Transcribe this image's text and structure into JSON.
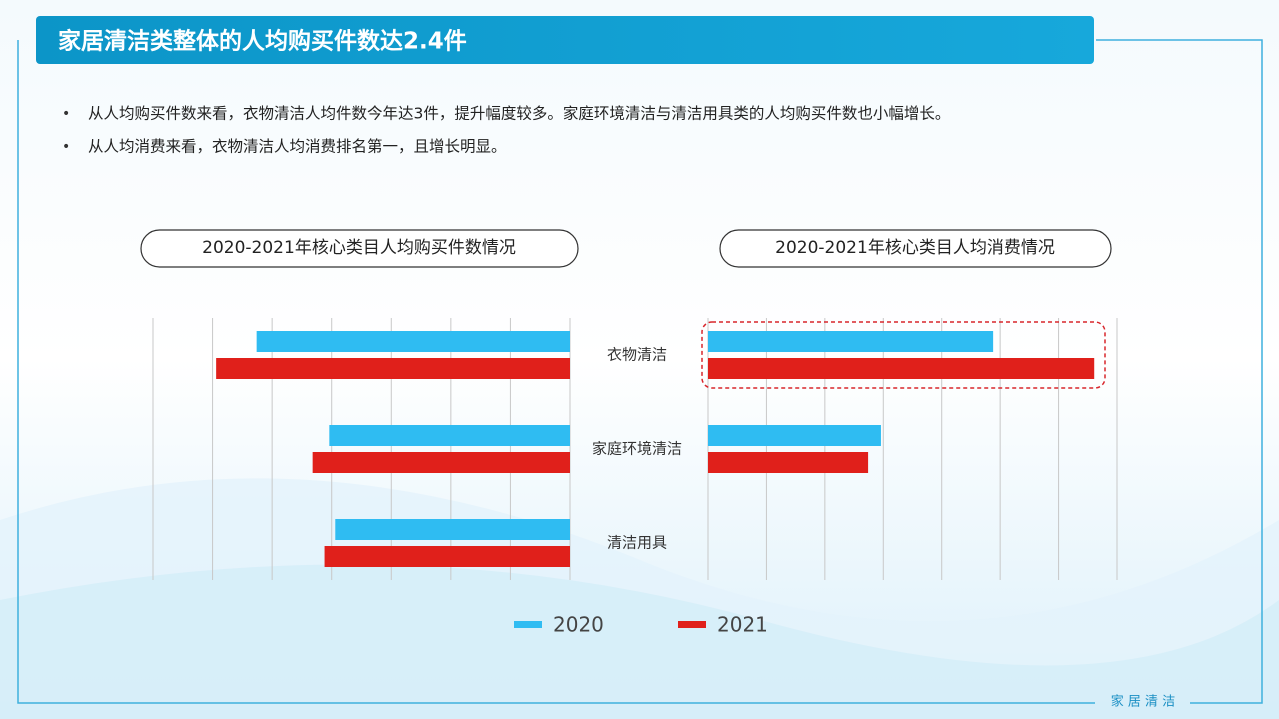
{
  "header": {
    "title": "家居清洁类整体的人均购买件数达2.4件"
  },
  "bullets": [
    "从人均购买件数来看，衣物清洁人均件数今年达3件，提升幅度较多。家庭环境清洁与清洁用具类的人均购买件数也小幅增长。",
    "从人均消费来看，衣物清洁人均消费排名第一，且增长明显。"
  ],
  "chart_data": [
    {
      "type": "bar",
      "orientation": "horizontal",
      "direction": "leftward",
      "title": "2020-2021年核心类目人均购买件数情况",
      "categories": [
        "衣物清洁",
        "家庭环境清洁",
        "清洁用具"
      ],
      "series": [
        {
          "name": "2020",
          "color": "#2fbcf2",
          "values": [
            2.63,
            2.02,
            1.97
          ]
        },
        {
          "name": "2021",
          "color": "#e0201b",
          "values": [
            2.97,
            2.16,
            2.06
          ]
        }
      ],
      "xlim": [
        0,
        3.5
      ],
      "xticks": [
        0,
        0.5,
        1,
        1.5,
        2,
        2.5,
        3,
        3.5
      ],
      "grid": true
    },
    {
      "type": "bar",
      "orientation": "horizontal",
      "direction": "rightward",
      "title": "2020-2021年核心类目人均消费情况",
      "series": [
        {
          "color": "#2fbcf2",
          "values": [
            48.8,
            29.6
          ]
        },
        {
          "color": "#e0201b",
          "values": [
            66.1,
            27.4
          ]
        }
      ],
      "xlim": [
        0,
        70
      ],
      "xticks": [
        0,
        10,
        20,
        30,
        40,
        50,
        60,
        70
      ],
      "grid": true
    }
  ],
  "footer": {
    "text": "家 居 清 洁"
  }
}
